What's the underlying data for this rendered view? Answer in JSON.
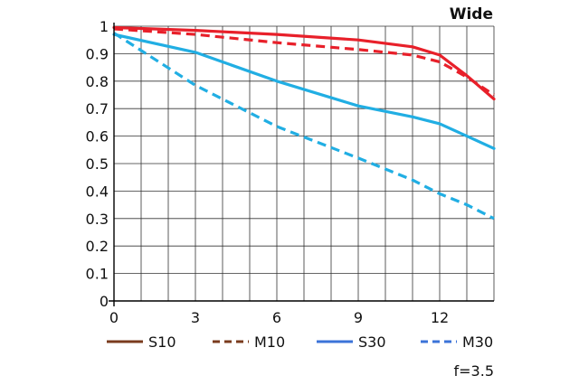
{
  "chart_data": {
    "type": "line",
    "title": "Wide",
    "note": "f=3.5",
    "xlabel": "",
    "ylabel": "",
    "xlim": [
      0,
      14
    ],
    "ylim": [
      0,
      1
    ],
    "x_ticks": [
      0,
      3,
      6,
      9,
      12
    ],
    "y_ticks": [
      0,
      0.1,
      0.2,
      0.3,
      0.4,
      0.5,
      0.6,
      0.7,
      0.8,
      0.9,
      1
    ],
    "x_tick_labels": [
      "0",
      "3",
      "6",
      "9",
      "12"
    ],
    "y_tick_labels": [
      "0",
      "0.1",
      "0.2",
      "0.3",
      "0.4",
      "0.5",
      "0.6",
      "0.7",
      "0.8",
      "0.9",
      "1"
    ],
    "grid": true,
    "legend_position": "bottom",
    "series": [
      {
        "name": "S10",
        "color": "#e8202a",
        "style": "solid",
        "legend_color": "#7a3b1e",
        "points": [
          [
            0,
            0.995
          ],
          [
            3,
            0.985
          ],
          [
            6,
            0.97
          ],
          [
            9,
            0.95
          ],
          [
            11,
            0.925
          ],
          [
            12,
            0.895
          ],
          [
            13,
            0.82
          ],
          [
            14,
            0.735
          ]
        ]
      },
      {
        "name": "M10",
        "color": "#e8202a",
        "style": "dashed",
        "legend_color": "#7a3b1e",
        "points": [
          [
            0,
            0.99
          ],
          [
            3,
            0.97
          ],
          [
            6,
            0.94
          ],
          [
            9,
            0.915
          ],
          [
            11,
            0.895
          ],
          [
            12,
            0.87
          ],
          [
            13,
            0.815
          ],
          [
            14,
            0.75
          ]
        ]
      },
      {
        "name": "S30",
        "color": "#21aee3",
        "style": "solid",
        "legend_color": "#3b73d8",
        "points": [
          [
            0,
            0.97
          ],
          [
            3,
            0.905
          ],
          [
            6,
            0.8
          ],
          [
            9,
            0.71
          ],
          [
            11,
            0.67
          ],
          [
            12,
            0.645
          ],
          [
            13,
            0.6
          ],
          [
            14,
            0.555
          ]
        ]
      },
      {
        "name": "M30",
        "color": "#21aee3",
        "style": "dashed",
        "legend_color": "#3b73d8",
        "points": [
          [
            0,
            0.975
          ],
          [
            3,
            0.785
          ],
          [
            6,
            0.635
          ],
          [
            9,
            0.52
          ],
          [
            11,
            0.44
          ],
          [
            12,
            0.39
          ],
          [
            13,
            0.35
          ],
          [
            14,
            0.3
          ]
        ]
      }
    ]
  }
}
